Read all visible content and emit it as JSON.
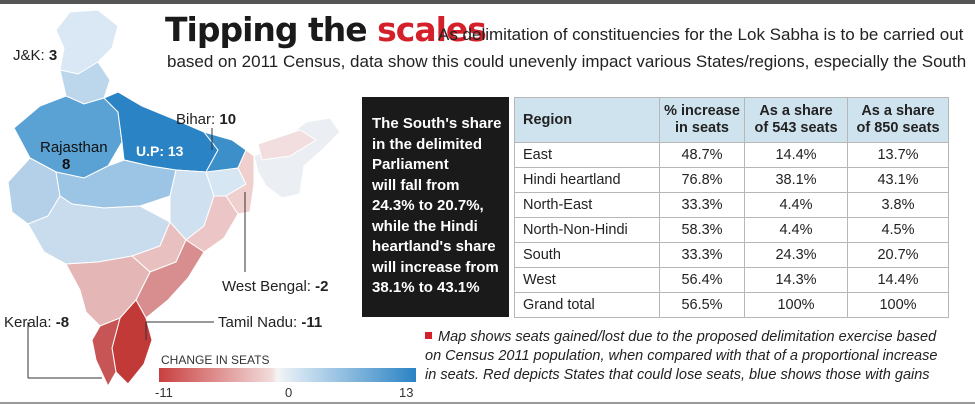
{
  "title": {
    "part1": "Tipping the ",
    "part2": "scales"
  },
  "intro": {
    "line1": "As delimitation of constituencies for the Lok Sabha is to be carried out",
    "line2": "based on 2011 Census, data show this could unevenly impact various States/regions, especially the South"
  },
  "callout_lines": [
    "The South's share",
    "in the delimited",
    "Parliament",
    "will fall from",
    "24.3% to 20.7%,",
    "while the Hindi",
    "heartland's share",
    "will increase from",
    "38.1% to 43.1%"
  ],
  "map_labels": {
    "jk": {
      "name": "J&K: ",
      "value": "3"
    },
    "bihar": {
      "name": "Bihar: ",
      "value": "10"
    },
    "rajasthan": {
      "name": "Rajasthan",
      "value": "8"
    },
    "up": {
      "text": "U.P: 13"
    },
    "wb": {
      "name": "West Bengal: ",
      "value": "-2"
    },
    "kerala": {
      "name": "Kerala: ",
      "value": "-8"
    },
    "tn": {
      "name": "Tamil Nadu: ",
      "value": "-11"
    }
  },
  "legend": {
    "title": "CHANGE IN SEATS",
    "min": "-11",
    "mid": "0",
    "max": "13"
  },
  "colors": {
    "accent": "#d4202a",
    "header_bg": "#cfe3ef",
    "callout_bg": "#1a1a1a",
    "loss": "#c8403f",
    "gain": "#2a83c4"
  },
  "note": {
    "line1": "Map shows seats gained/lost due to the proposed delimitation exercise based",
    "line2": "on Census 2011 population, when compared with that of a proportional increase",
    "line3": "in seats. Red depicts States that could lose seats, blue shows those with gains"
  },
  "chart_data": {
    "type": "table",
    "columns": [
      "Region",
      "% increase in seats",
      "As a share of 543 seats",
      "As a share of 850 seats"
    ],
    "header_lines": [
      [
        "Region"
      ],
      [
        "% increase",
        "in seats"
      ],
      [
        "As a share",
        "of 543 seats"
      ],
      [
        "As a share",
        "of 850 seats"
      ]
    ],
    "rows": [
      [
        "East",
        "48.7%",
        "14.4%",
        "13.7%"
      ],
      [
        "Hindi heartland",
        "76.8%",
        "38.1%",
        "43.1%"
      ],
      [
        "North-East",
        "33.3%",
        "4.4%",
        "3.8%"
      ],
      [
        "North-Non-Hindi",
        "58.3%",
        "4.4%",
        "4.5%"
      ],
      [
        "South",
        "33.3%",
        "24.3%",
        "20.7%"
      ],
      [
        "West",
        "56.4%",
        "14.3%",
        "14.4%"
      ],
      [
        "Grand total",
        "56.5%",
        "100%",
        "100%"
      ]
    ],
    "map_seat_changes": [
      {
        "state": "J&K",
        "change": 3
      },
      {
        "state": "Bihar",
        "change": 10
      },
      {
        "state": "Rajasthan",
        "change": 8
      },
      {
        "state": "U.P",
        "change": 13
      },
      {
        "state": "West Bengal",
        "change": -2
      },
      {
        "state": "Kerala",
        "change": -8
      },
      {
        "state": "Tamil Nadu",
        "change": -11
      }
    ],
    "legend_range": [
      -11,
      13
    ]
  }
}
